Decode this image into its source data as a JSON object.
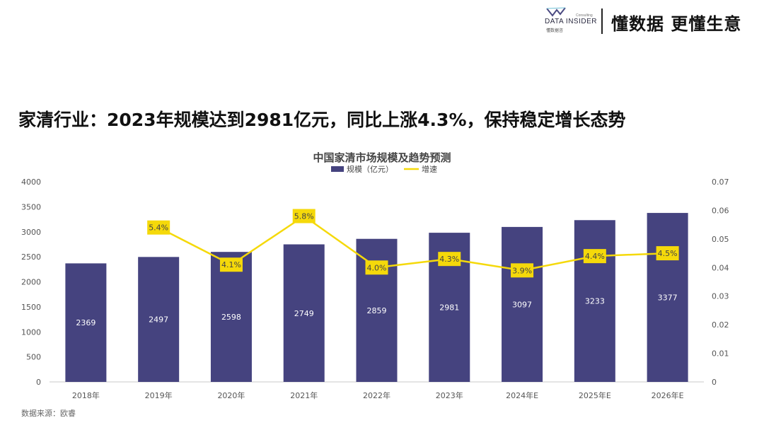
{
  "brand": {
    "name": "DATA INSIDER",
    "consulting": "Consulting",
    "subname": "懂数据咨",
    "slogan": "懂数据 更懂生意",
    "accent": "#4b4a82"
  },
  "headline": "家清行业：2023年规模达到2981亿元，同比上涨4.3%，保持稳定增长态势",
  "source": "数据来源：欧睿",
  "chart_data": {
    "type": "bar+line",
    "title": "中国家清市场规模及趋势预测",
    "categories": [
      "2018年",
      "2019年",
      "2020年",
      "2021年",
      "2022年",
      "2023年",
      "2024年E",
      "2025年E",
      "2026年E"
    ],
    "series": [
      {
        "name": "规模（亿元）",
        "kind": "bar",
        "axis": "left",
        "color": "#45437f",
        "values": [
          2369,
          2497,
          2598,
          2749,
          2859,
          2981,
          3097,
          3233,
          3377
        ],
        "labels": [
          "2369",
          "2497",
          "2598",
          "2749",
          "2859",
          "2981",
          "3097",
          "3233",
          "3377"
        ]
      },
      {
        "name": "增速",
        "kind": "line",
        "axis": "right",
        "color": "#f5d90a",
        "values": [
          null,
          0.054,
          0.041,
          0.058,
          0.04,
          0.043,
          0.039,
          0.044,
          0.045
        ],
        "labels": [
          null,
          "5.4%",
          "4.1%",
          "5.8%",
          "4.0%",
          "4.3%",
          "3.9%",
          "4.4%",
          "4.5%"
        ]
      }
    ],
    "y_left": {
      "min": 0,
      "max": 4000,
      "ticks": [
        "0",
        "500",
        "1000",
        "1500",
        "2000",
        "2500",
        "3000",
        "3500",
        "4000"
      ]
    },
    "y_right": {
      "min": 0,
      "max": 0.07,
      "ticks": [
        "0",
        "0.01",
        "0.02",
        "0.03",
        "0.04",
        "0.05",
        "0.06",
        "0.07"
      ]
    },
    "grid": false,
    "legend": "top-center"
  }
}
